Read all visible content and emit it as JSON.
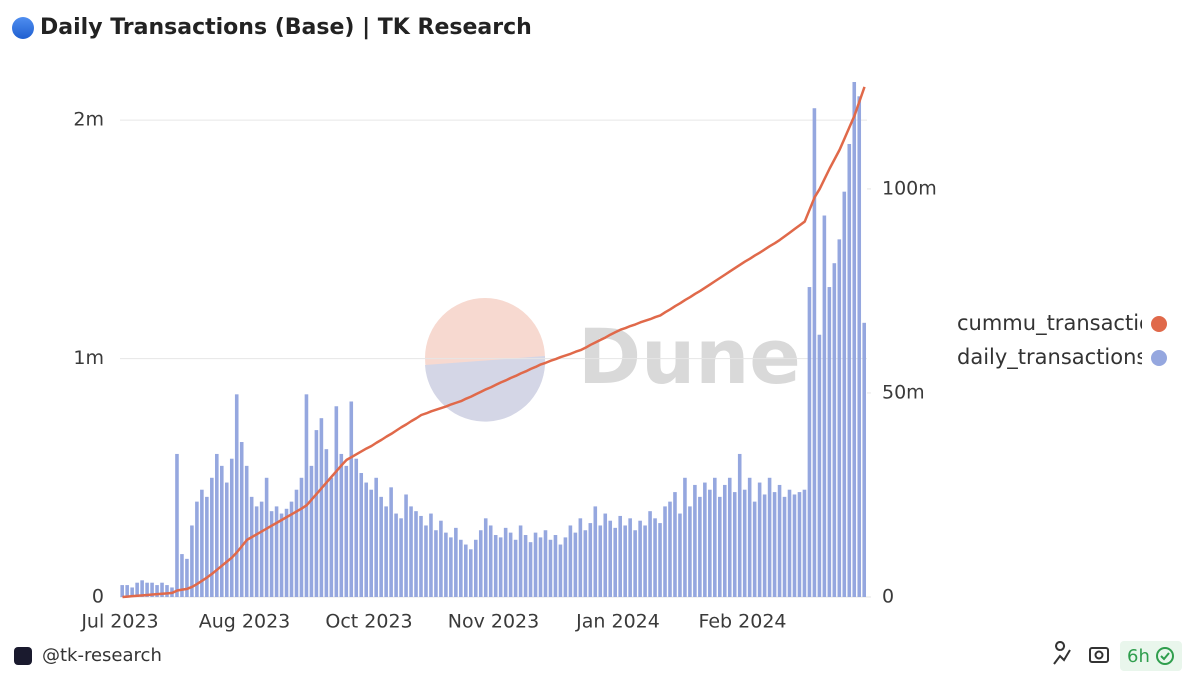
{
  "chart_data": {
    "type": "bar_line",
    "title": "Daily Transactions (Base) | TK Research",
    "watermark": "Dune",
    "categories": [
      "Jul 2023",
      null,
      null,
      null,
      null,
      null,
      null,
      null,
      null,
      null,
      null,
      null,
      null,
      null,
      null,
      null,
      null,
      null,
      null,
      null,
      null,
      null,
      null,
      null,
      null,
      "Aug 2023",
      null,
      null,
      null,
      null,
      null,
      null,
      null,
      null,
      null,
      null,
      null,
      null,
      null,
      null,
      null,
      null,
      null,
      null,
      null,
      null,
      null,
      null,
      null,
      null,
      "Oct 2023",
      null,
      null,
      null,
      null,
      null,
      null,
      null,
      null,
      null,
      null,
      null,
      null,
      null,
      null,
      null,
      null,
      null,
      null,
      null,
      null,
      null,
      null,
      null,
      null,
      "Nov 2023",
      null,
      null,
      null,
      null,
      null,
      null,
      null,
      null,
      null,
      null,
      null,
      null,
      null,
      null,
      null,
      null,
      null,
      null,
      null,
      null,
      null,
      null,
      null,
      null,
      "Jan 2024",
      null,
      null,
      null,
      null,
      null,
      null,
      null,
      null,
      null,
      null,
      null,
      null,
      null,
      null,
      null,
      null,
      null,
      null,
      null,
      null,
      null,
      null,
      null,
      null,
      "Feb 2024",
      null,
      null,
      null,
      null,
      null,
      null,
      null,
      null,
      null,
      null,
      null,
      null,
      null,
      null,
      null,
      null,
      null,
      null,
      null,
      null,
      null,
      null,
      null,
      null
    ],
    "series": [
      {
        "name": "daily_transactions",
        "color": "#95a7df",
        "kind": "bar",
        "axis": "y",
        "values": [
          0.05,
          0.05,
          0.04,
          0.06,
          0.07,
          0.06,
          0.06,
          0.05,
          0.06,
          0.05,
          0.04,
          0.6,
          0.18,
          0.16,
          0.3,
          0.4,
          0.45,
          0.42,
          0.5,
          0.6,
          0.55,
          0.48,
          0.58,
          0.85,
          0.65,
          0.55,
          0.42,
          0.38,
          0.4,
          0.5,
          0.36,
          0.38,
          0.35,
          0.37,
          0.4,
          0.45,
          0.5,
          0.85,
          0.55,
          0.7,
          0.75,
          0.62,
          0.5,
          0.8,
          0.6,
          0.55,
          0.82,
          0.58,
          0.52,
          0.48,
          0.45,
          0.5,
          0.42,
          0.38,
          0.46,
          0.35,
          0.33,
          0.43,
          0.38,
          0.36,
          0.34,
          0.3,
          0.35,
          0.28,
          0.32,
          0.27,
          0.25,
          0.29,
          0.24,
          0.22,
          0.2,
          0.24,
          0.28,
          0.33,
          0.3,
          0.26,
          0.25,
          0.29,
          0.27,
          0.24,
          0.3,
          0.26,
          0.23,
          0.27,
          0.25,
          0.28,
          0.24,
          0.26,
          0.22,
          0.25,
          0.3,
          0.27,
          0.33,
          0.28,
          0.31,
          0.38,
          0.3,
          0.35,
          0.32,
          0.29,
          0.34,
          0.3,
          0.33,
          0.28,
          0.32,
          0.3,
          0.36,
          0.33,
          0.31,
          0.38,
          0.4,
          0.44,
          0.35,
          0.5,
          0.38,
          0.47,
          0.42,
          0.48,
          0.45,
          0.5,
          0.42,
          0.47,
          0.5,
          0.44,
          0.6,
          0.45,
          0.5,
          0.4,
          0.48,
          0.43,
          0.5,
          0.44,
          0.47,
          0.42,
          0.45,
          0.43,
          0.44,
          0.45,
          1.3,
          2.05,
          1.1,
          1.6,
          1.3,
          1.4,
          1.5,
          1.7,
          1.9,
          2.16,
          2.1,
          1.15
        ]
      },
      {
        "name": "cummu_transactions",
        "color": "#e0694a",
        "kind": "line",
        "axis": "y2",
        "values": [
          0,
          0.1,
          0.2,
          0.3,
          0.4,
          0.5,
          0.6,
          0.7,
          0.8,
          0.9,
          1.0,
          1.6,
          1.8,
          2.0,
          2.5,
          3.2,
          4,
          4.8,
          5.7,
          6.7,
          7.7,
          8.7,
          9.7,
          11,
          12.5,
          14,
          14.7,
          15.4,
          16.1,
          16.8,
          17.5,
          18.2,
          18.9,
          19.6,
          20.3,
          21,
          21.7,
          22.5,
          23.9,
          25.3,
          26.7,
          28.1,
          29.5,
          30.9,
          32.3,
          33.6,
          34.3,
          35,
          35.7,
          36.4,
          37,
          37.8,
          38.5,
          39.3,
          40,
          40.8,
          41.6,
          42.3,
          43.1,
          43.8,
          44.6,
          45,
          45.5,
          45.9,
          46.3,
          46.7,
          47.2,
          47.6,
          48,
          48.6,
          49.1,
          49.7,
          50.3,
          50.9,
          51.4,
          52,
          52.6,
          53.1,
          53.7,
          54.2,
          54.8,
          55.3,
          55.9,
          56.4,
          57,
          57.4,
          57.9,
          58.3,
          58.8,
          59.2,
          59.6,
          60.1,
          60.5,
          61.1,
          61.8,
          62.4,
          63,
          63.6,
          64.3,
          64.9,
          65.5,
          65.9,
          66.4,
          66.8,
          67.3,
          67.7,
          68.1,
          68.6,
          69,
          69.8,
          70.5,
          71.3,
          72,
          72.8,
          73.5,
          74.3,
          75,
          75.8,
          76.6,
          77.4,
          78.2,
          79,
          79.8,
          80.6,
          81.4,
          82.2,
          82.9,
          83.7,
          84.4,
          85.2,
          86,
          86.7,
          87.5,
          88.4,
          89.3,
          90.2,
          91.1,
          92,
          95,
          98,
          100,
          102.5,
          105,
          107.3,
          109.6,
          112.4,
          115.2,
          118,
          121.5,
          125
        ]
      }
    ],
    "ylim": [
      0,
      2.16
    ],
    "yticks": [
      0,
      {
        "value": 1,
        "label": "1m"
      },
      {
        "value": 2,
        "label": "2m"
      }
    ],
    "y2lim": [
      0,
      126.2
    ],
    "y2ticks": [
      0,
      {
        "value": 50,
        "label": "50m"
      },
      {
        "value": 100,
        "label": "100m"
      }
    ],
    "grid": true,
    "legend": "right"
  },
  "footer": {
    "handle": "@tk-research",
    "age": "6h"
  }
}
